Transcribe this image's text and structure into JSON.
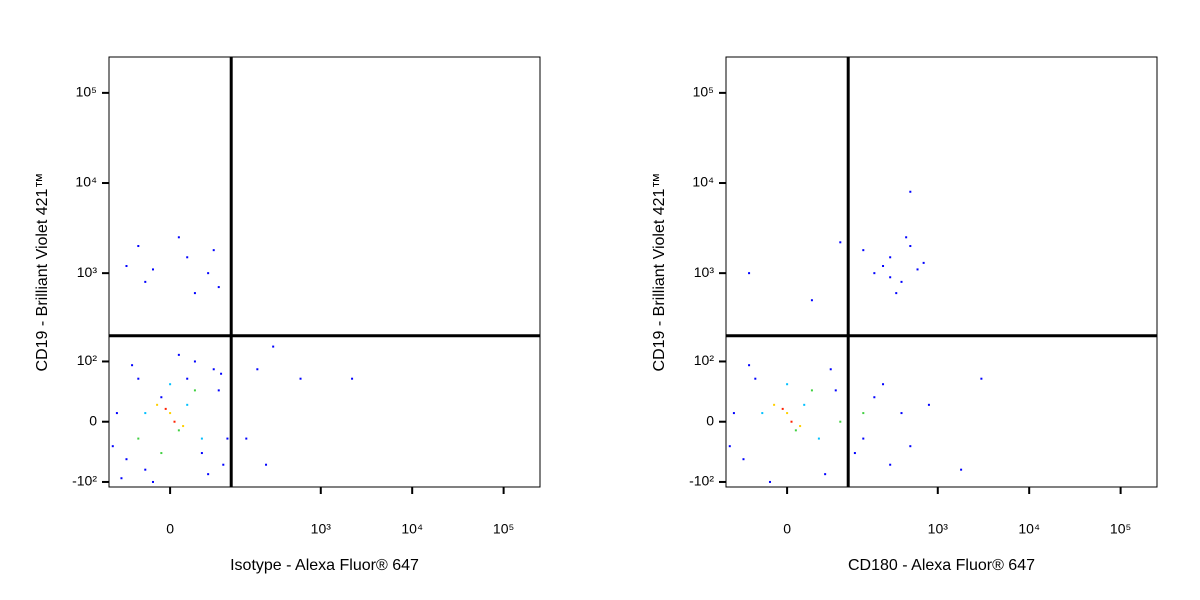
{
  "chart_data": [
    {
      "type": "scatter",
      "xlabel": "Isotype - Alexa Fluor® 647",
      "ylabel": "CD19 - Brilliant Violet 421™",
      "xlim": [
        -100,
        250000
      ],
      "ylim": [
        -115,
        250000
      ],
      "xticks": [
        0,
        {
          "value": 1000,
          "label": "10³"
        },
        {
          "value": 10000,
          "label": "10⁴"
        },
        {
          "value": 100000,
          "label": "10⁵"
        }
      ],
      "yticks": [
        {
          "value": -100,
          "label": "-10²"
        },
        0,
        {
          "value": 100,
          "label": "10²"
        },
        {
          "value": 1000,
          "label": "10³"
        },
        {
          "value": 10000,
          "label": "10⁴"
        },
        {
          "value": 100000,
          "label": "10⁵"
        }
      ],
      "gates": {
        "x": 100,
        "y": 200
      },
      "groups": [
        {
          "color": "#0000ff",
          "x": [
            -60,
            50,
            -40,
            70,
            -80,
            90,
            30,
            -20,
            60,
            -70,
            10,
            80,
            -50,
            40,
            100,
            -90,
            20,
            -30,
            75,
            -10,
            -30,
            20,
            50,
            -60,
            10,
            70,
            -40,
            30,
            -20,
            60,
            200,
            300,
            600,
            2200,
            150,
            250
          ],
          "y": [
            -50,
            -80,
            60,
            40,
            10,
            -20,
            100,
            -100,
            80,
            -90,
            120,
            -60,
            90,
            -40,
            20,
            -30,
            60,
            -70,
            70,
            30,
            800,
            1500,
            1000,
            1200,
            2500,
            700,
            2000,
            600,
            1100,
            1800,
            80,
            150,
            60,
            60,
            -20,
            -60
          ]
        },
        {
          "color": "#00c0ff",
          "x": [
            20,
            -30,
            40,
            0
          ],
          "y": [
            20,
            10,
            -20,
            50
          ]
        },
        {
          "color": "#40d040",
          "x": [
            -10,
            30,
            -40,
            10
          ],
          "y": [
            -40,
            40,
            -20,
            -10
          ]
        },
        {
          "color": "#ffd000",
          "x": [
            0,
            15,
            -15
          ],
          "y": [
            10,
            -5,
            20
          ]
        },
        {
          "color": "#ff2000",
          "x": [
            5,
            -5
          ],
          "y": [
            0,
            15
          ]
        }
      ]
    },
    {
      "type": "scatter",
      "xlabel": "CD180 - Alexa Fluor® 647",
      "ylabel": "CD19 - Brilliant Violet 421™",
      "xlim": [
        -100,
        250000
      ],
      "ylim": [
        -115,
        250000
      ],
      "xticks": [
        0,
        {
          "value": 1000,
          "label": "10³"
        },
        {
          "value": 10000,
          "label": "10⁴"
        },
        {
          "value": 100000,
          "label": "10⁵"
        }
      ],
      "yticks": [
        {
          "value": -100,
          "label": "-10²"
        },
        0,
        {
          "value": 100,
          "label": "10²"
        },
        {
          "value": 1000,
          "label": "10³"
        },
        {
          "value": 10000,
          "label": "10⁴"
        },
        {
          "value": 100000,
          "label": "10⁵"
        }
      ],
      "gates": {
        "x": 100,
        "y": 200
      },
      "groups": [
        {
          "color": "#0000ff",
          "x": [
            -60,
            50,
            -40,
            70,
            -80,
            150,
            200,
            300,
            -20,
            60,
            400,
            120,
            -50,
            250,
            500,
            -90,
            100,
            800,
            3000,
            1800,
            200,
            300,
            400,
            250,
            500,
            350,
            600,
            450,
            700,
            300,
            150,
            80,
            -50,
            500,
            30,
            100
          ],
          "y": [
            -50,
            -80,
            60,
            40,
            10,
            -20,
            30,
            -60,
            -100,
            80,
            10,
            -40,
            90,
            50,
            -30,
            -30,
            70,
            20,
            60,
            -70,
            1000,
            1500,
            800,
            1200,
            2000,
            600,
            1100,
            2500,
            1300,
            900,
            1800,
            2200,
            1000,
            8000,
            500,
            3000
          ]
        },
        {
          "color": "#00c0ff",
          "x": [
            20,
            -30,
            40,
            0
          ],
          "y": [
            20,
            10,
            -20,
            50
          ]
        },
        {
          "color": "#40d040",
          "x": [
            80,
            30,
            150,
            10
          ],
          "y": [
            0,
            40,
            10,
            -10
          ]
        },
        {
          "color": "#ffd000",
          "x": [
            0,
            15,
            -15
          ],
          "y": [
            10,
            -5,
            20
          ]
        },
        {
          "color": "#ff2000",
          "x": [
            5,
            -5
          ],
          "y": [
            0,
            15
          ]
        }
      ]
    }
  ]
}
